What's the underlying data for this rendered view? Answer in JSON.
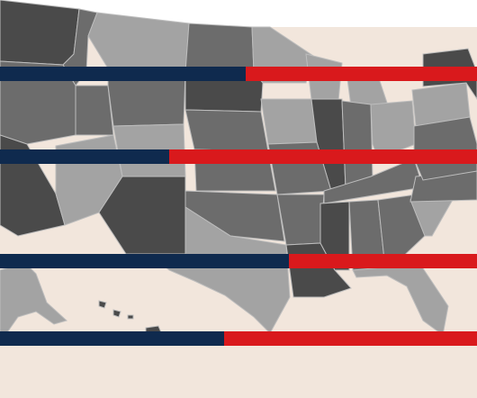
{
  "colors": {
    "background": "#f2e6dc",
    "top_band": "#ffffff",
    "navy": "#0f2a4e",
    "red": "#d9191c",
    "state_dark": "#4a4a4a",
    "state_mid": "#6c6c6c",
    "state_light": "#a3a3a3",
    "state_border": "#bdbdbd"
  },
  "bars": [
    {
      "name": "bar-1",
      "navy_fraction": 0.515
    },
    {
      "name": "bar-2",
      "navy_fraction": 0.355
    },
    {
      "name": "bar-3",
      "navy_fraction": 0.605
    },
    {
      "name": "bar-4",
      "navy_fraction": 0.47
    }
  ]
}
